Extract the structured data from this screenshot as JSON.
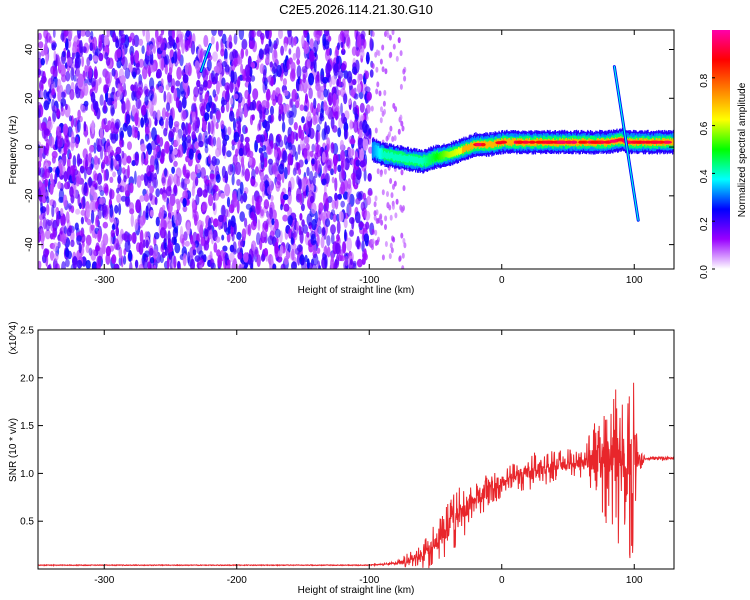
{
  "title": "C2E5.2026.114.21.30.G10",
  "chart_data": [
    {
      "type": "heatmap",
      "xlabel": "Height of straight line (km)",
      "ylabel": "Frequency (Hz)",
      "xlim": [
        -350,
        130
      ],
      "ylim": [
        -50,
        48
      ],
      "xticks": [
        -300,
        -200,
        -100,
        0,
        100
      ],
      "yticks": [
        -40,
        -20,
        0,
        20,
        40
      ],
      "colorbar": {
        "label": "Normalized spectral amplitude",
        "range": [
          0,
          1
        ],
        "ticks": [
          0.0,
          0.2,
          0.4,
          0.6,
          0.8
        ],
        "colors": [
          "#ffffff",
          "#9900ff",
          "#0000ff",
          "#00ffff",
          "#00ff00",
          "#ffff00",
          "#ff8000",
          "#ff0000",
          "#ff00aa"
        ]
      },
      "noise_region": {
        "x_from": -350,
        "x_to": -98,
        "level": 0.2
      },
      "ridge": {
        "x": [
          -98,
          -90,
          -80,
          -70,
          -60,
          -50,
          -40,
          -30,
          -20,
          -10,
          0,
          20,
          40,
          60,
          80,
          90,
          95,
          100,
          130
        ],
        "y": [
          -1,
          -3,
          -4,
          -5,
          -6,
          -4,
          -3,
          -1,
          1,
          1,
          2,
          2,
          2,
          2,
          2,
          3,
          2,
          2,
          2
        ],
        "amplitude": [
          0.35,
          0.45,
          0.45,
          0.45,
          0.45,
          0.55,
          0.65,
          0.7,
          0.75,
          0.8,
          0.8,
          0.85,
          0.9,
          0.9,
          0.9,
          0.9,
          0.8,
          0.85,
          0.85
        ]
      },
      "streaks": [
        {
          "x": [
            -227,
            -220
          ],
          "y": [
            31,
            42
          ],
          "amplitude": 0.3
        },
        {
          "x": [
            85,
            103
          ],
          "y": [
            33,
            -30
          ],
          "amplitude": 0.3
        }
      ]
    },
    {
      "type": "line",
      "xlabel": "Height of straight line (km)",
      "ylabel": "SNR (10 * v/v)",
      "scale_label": "(x10^4)",
      "xlim": [
        -350,
        130
      ],
      "ylim": [
        0,
        2.5
      ],
      "xticks": [
        -300,
        -200,
        -100,
        0,
        100
      ],
      "yticks": [
        0.5,
        1.0,
        1.5,
        2.0,
        2.5
      ],
      "series": [
        {
          "color": "#e8262b",
          "envelope": {
            "x": [
              -350,
              -100,
              -80,
              -60,
              -50,
              -40,
              -30,
              -20,
              -10,
              0,
              10,
              20,
              30,
              40,
              50,
              60,
              70,
              80,
              90,
              95,
              100,
              103,
              108,
              115,
              130
            ],
            "y": [
              0.04,
              0.04,
              0.06,
              0.12,
              0.25,
              0.45,
              0.6,
              0.72,
              0.82,
              0.9,
              0.97,
              1.02,
              1.05,
              1.08,
              1.1,
              1.12,
              1.14,
              1.14,
              1.1,
              1.05,
              1.15,
              1.15,
              1.15,
              1.16,
              1.16
            ],
            "spread": [
              0.0,
              0.0,
              0.02,
              0.15,
              0.25,
              0.3,
              0.3,
              0.2,
              0.2,
              0.15,
              0.15,
              0.2,
              0.2,
              0.15,
              0.15,
              0.2,
              0.4,
              0.7,
              0.9,
              0.9,
              1.2,
              0.15,
              0.02,
              0.02,
              0.02
            ]
          }
        }
      ]
    }
  ]
}
